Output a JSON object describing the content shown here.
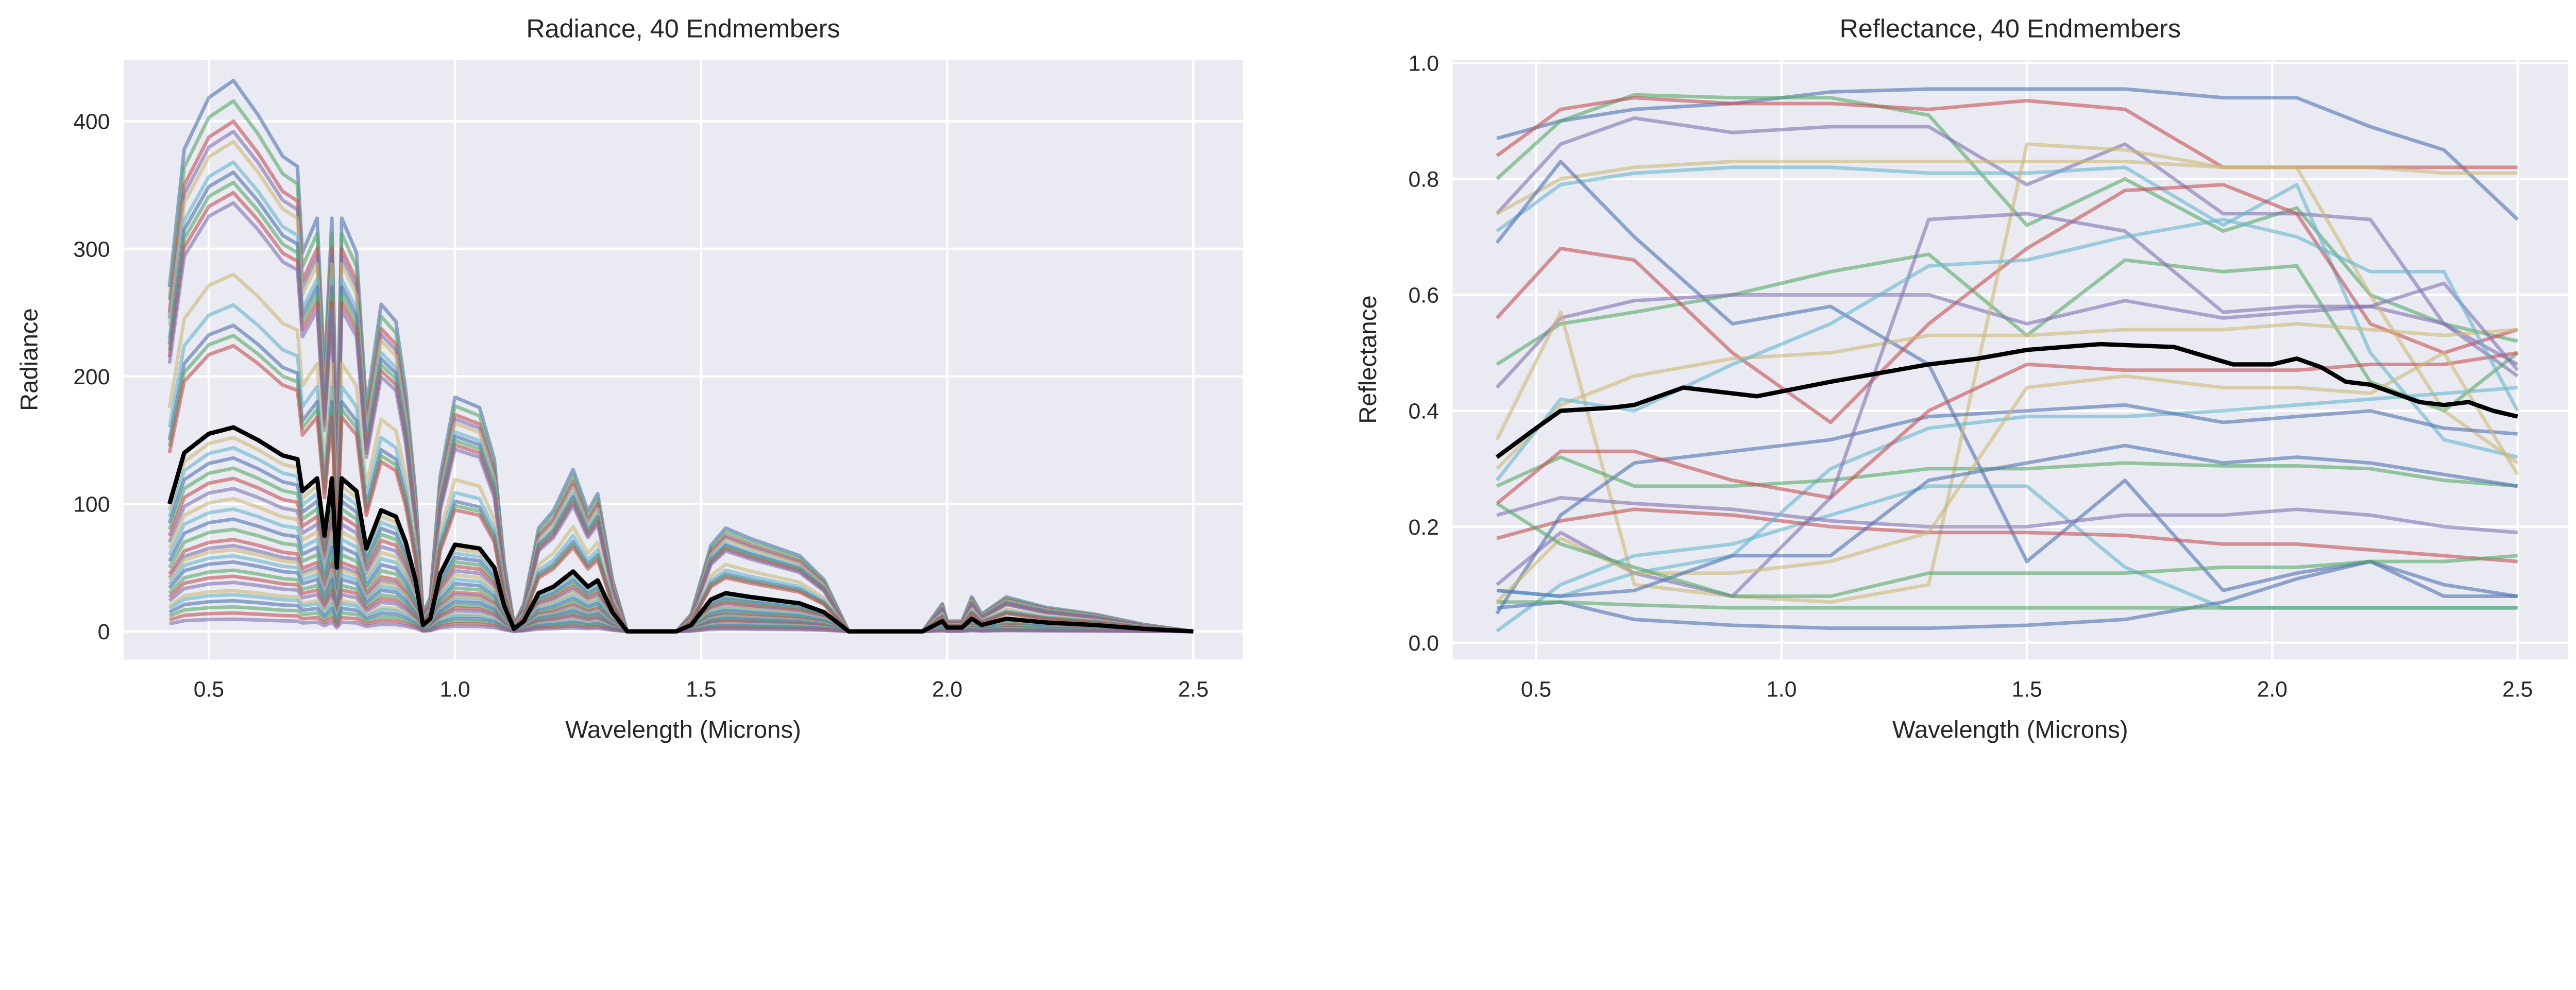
{
  "palette": [
    "#4C72B0",
    "#55A868",
    "#C44E52",
    "#8172B2",
    "#CCB974",
    "#64B5CD"
  ],
  "background": "#EAEAF2",
  "mean_color": "#000000",
  "chart_data": [
    {
      "type": "line",
      "title": "Radiance, 40 Endmembers",
      "xlabel": "Wavelength (Microns)",
      "ylabel": "Radiance",
      "xlim": [
        0.327,
        2.601
      ],
      "ylim": [
        -22,
        448
      ],
      "xticks": [
        0.5,
        1.0,
        1.5,
        2.0,
        2.5
      ],
      "xtick_labels": [
        "0.5",
        "1.0",
        "1.5",
        "2.0",
        "2.5"
      ],
      "yticks": [
        0,
        100,
        200,
        300,
        400
      ],
      "ytick_labels": [
        "0",
        "100",
        "200",
        "300",
        "400"
      ],
      "grid": true,
      "mean": {
        "x": [
          0.42,
          0.45,
          0.5,
          0.55,
          0.6,
          0.65,
          0.68,
          0.69,
          0.72,
          0.735,
          0.75,
          0.76,
          0.77,
          0.8,
          0.82,
          0.85,
          0.88,
          0.9,
          0.92,
          0.935,
          0.95,
          0.97,
          1.0,
          1.05,
          1.08,
          1.1,
          1.12,
          1.14,
          1.17,
          1.2,
          1.24,
          1.27,
          1.29,
          1.32,
          1.35,
          1.45,
          1.48,
          1.52,
          1.55,
          1.6,
          1.7,
          1.75,
          1.8,
          1.95,
          1.99,
          2.0,
          2.03,
          2.05,
          2.07,
          2.12,
          2.2,
          2.3,
          2.4,
          2.5
        ],
        "y": [
          100,
          140,
          155,
          160,
          150,
          138,
          135,
          110,
          120,
          75,
          120,
          50,
          120,
          110,
          65,
          95,
          90,
          70,
          40,
          5,
          10,
          45,
          68,
          65,
          50,
          20,
          2,
          8,
          30,
          35,
          47,
          35,
          40,
          15,
          0,
          0,
          5,
          25,
          30,
          27,
          22,
          15,
          0,
          0,
          8,
          3,
          3,
          10,
          5,
          10,
          7,
          5,
          2,
          0
        ]
      },
      "endmember_scales": [
        2.7,
        2.6,
        2.5,
        2.45,
        2.4,
        2.3,
        2.25,
        2.2,
        2.15,
        2.1,
        1.75,
        1.6,
        1.5,
        1.45,
        1.4,
        1.0,
        0.95,
        0.9,
        0.85,
        0.8,
        0.75,
        0.7,
        0.65,
        0.6,
        0.55,
        0.5,
        0.45,
        0.42,
        0.4,
        0.37,
        0.34,
        0.3,
        0.27,
        0.24,
        0.2,
        0.18,
        0.15,
        0.12,
        0.09,
        0.06
      ]
    },
    {
      "type": "line",
      "title": "Reflectance, 40 Endmembers",
      "xlabel": "Wavelength (Microns)",
      "ylabel": "Reflectance",
      "xlim": [
        0.33,
        2.603
      ],
      "ylim": [
        -0.029,
        1.005
      ],
      "xticks": [
        0.5,
        1.0,
        1.5,
        2.0,
        2.5
      ],
      "xtick_labels": [
        "0.5",
        "1.0",
        "1.5",
        "2.0",
        "2.5"
      ],
      "yticks": [
        0.0,
        0.2,
        0.4,
        0.6,
        0.8,
        1.0
      ],
      "ytick_labels": [
        "0.0",
        "0.2",
        "0.4",
        "0.6",
        "0.8",
        "1.0"
      ],
      "grid": true,
      "mean": {
        "x": [
          0.42,
          0.5,
          0.55,
          0.65,
          0.7,
          0.8,
          0.95,
          1.1,
          1.3,
          1.4,
          1.5,
          1.65,
          1.8,
          1.92,
          2.0,
          2.05,
          2.1,
          2.15,
          2.2,
          2.3,
          2.35,
          2.4,
          2.45,
          2.5
        ],
        "y": [
          0.32,
          0.37,
          0.4,
          0.405,
          0.41,
          0.44,
          0.425,
          0.45,
          0.48,
          0.49,
          0.505,
          0.515,
          0.51,
          0.48,
          0.48,
          0.49,
          0.475,
          0.45,
          0.445,
          0.415,
          0.41,
          0.415,
          0.4,
          0.39
        ]
      },
      "x": [
        0.42,
        0.55,
        0.7,
        0.9,
        1.1,
        1.3,
        1.5,
        1.7,
        1.9,
        2.05,
        2.2,
        2.35,
        2.5
      ],
      "series": [
        [
          0.87,
          0.9,
          0.92,
          0.93,
          0.95,
          0.955,
          0.955,
          0.955,
          0.94,
          0.94,
          0.89,
          0.85,
          0.73
        ],
        [
          0.8,
          0.9,
          0.945,
          0.94,
          0.94,
          0.91,
          0.72,
          0.8,
          0.71,
          0.75,
          0.6,
          0.55,
          0.52
        ],
        [
          0.84,
          0.92,
          0.94,
          0.93,
          0.93,
          0.92,
          0.935,
          0.92,
          0.82,
          0.82,
          0.82,
          0.82,
          0.82
        ],
        [
          0.74,
          0.86,
          0.905,
          0.88,
          0.89,
          0.89,
          0.79,
          0.86,
          0.74,
          0.74,
          0.73,
          0.55,
          0.46
        ],
        [
          0.74,
          0.8,
          0.82,
          0.83,
          0.83,
          0.83,
          0.83,
          0.83,
          0.82,
          0.82,
          0.82,
          0.81,
          0.81
        ],
        [
          0.71,
          0.79,
          0.81,
          0.82,
          0.82,
          0.81,
          0.81,
          0.82,
          0.72,
          0.79,
          0.5,
          0.35,
          0.32
        ],
        [
          0.69,
          0.83,
          0.7,
          0.55,
          0.58,
          0.48,
          0.14,
          0.28,
          0.09,
          0.12,
          0.14,
          0.08,
          0.08
        ],
        [
          0.48,
          0.55,
          0.57,
          0.6,
          0.64,
          0.67,
          0.53,
          0.66,
          0.64,
          0.65,
          0.45,
          0.4,
          0.5
        ],
        [
          0.56,
          0.68,
          0.66,
          0.5,
          0.38,
          0.55,
          0.68,
          0.78,
          0.79,
          0.74,
          0.55,
          0.5,
          0.54
        ],
        [
          0.44,
          0.56,
          0.59,
          0.6,
          0.6,
          0.6,
          0.55,
          0.59,
          0.56,
          0.57,
          0.58,
          0.55,
          0.48
        ],
        [
          0.35,
          0.57,
          0.1,
          0.08,
          0.07,
          0.1,
          0.86,
          0.85,
          0.82,
          0.82,
          0.6,
          0.4,
          0.31
        ],
        [
          0.02,
          0.1,
          0.15,
          0.17,
          0.22,
          0.27,
          0.27,
          0.13,
          0.06,
          0.06,
          0.06,
          0.06,
          0.06
        ],
        [
          0.06,
          0.07,
          0.04,
          0.03,
          0.025,
          0.025,
          0.03,
          0.04,
          0.07,
          0.11,
          0.14,
          0.1,
          0.08
        ],
        [
          0.07,
          0.07,
          0.065,
          0.06,
          0.06,
          0.06,
          0.06,
          0.06,
          0.06,
          0.06,
          0.06,
          0.06,
          0.06
        ],
        [
          0.18,
          0.21,
          0.23,
          0.22,
          0.2,
          0.19,
          0.19,
          0.185,
          0.17,
          0.17,
          0.16,
          0.15,
          0.14
        ],
        [
          0.22,
          0.25,
          0.24,
          0.23,
          0.21,
          0.2,
          0.2,
          0.22,
          0.22,
          0.23,
          0.22,
          0.2,
          0.19
        ],
        [
          0.3,
          0.41,
          0.46,
          0.49,
          0.5,
          0.53,
          0.53,
          0.54,
          0.54,
          0.55,
          0.54,
          0.53,
          0.54
        ],
        [
          0.09,
          0.08,
          0.12,
          0.15,
          0.3,
          0.37,
          0.39,
          0.39,
          0.4,
          0.41,
          0.42,
          0.43,
          0.44
        ],
        [
          0.05,
          0.22,
          0.31,
          0.33,
          0.35,
          0.39,
          0.4,
          0.41,
          0.38,
          0.39,
          0.4,
          0.37,
          0.36
        ],
        [
          0.27,
          0.32,
          0.27,
          0.27,
          0.28,
          0.3,
          0.3,
          0.31,
          0.305,
          0.305,
          0.3,
          0.28,
          0.27
        ],
        [
          0.24,
          0.33,
          0.33,
          0.28,
          0.25,
          0.4,
          0.48,
          0.47,
          0.47,
          0.47,
          0.48,
          0.48,
          0.5
        ],
        [
          0.1,
          0.19,
          0.12,
          0.08,
          0.25,
          0.73,
          0.74,
          0.71,
          0.57,
          0.58,
          0.58,
          0.62,
          0.47
        ],
        [
          0.07,
          0.18,
          0.12,
          0.12,
          0.14,
          0.19,
          0.44,
          0.46,
          0.44,
          0.44,
          0.43,
          0.5,
          0.29
        ],
        [
          0.28,
          0.42,
          0.4,
          0.48,
          0.55,
          0.65,
          0.66,
          0.7,
          0.73,
          0.7,
          0.64,
          0.64,
          0.4
        ],
        [
          0.09,
          0.08,
          0.09,
          0.15,
          0.15,
          0.28,
          0.31,
          0.34,
          0.31,
          0.32,
          0.31,
          0.29,
          0.27
        ],
        [
          0.24,
          0.17,
          0.13,
          0.08,
          0.08,
          0.12,
          0.12,
          0.12,
          0.13,
          0.13,
          0.14,
          0.14,
          0.15
        ]
      ]
    }
  ]
}
